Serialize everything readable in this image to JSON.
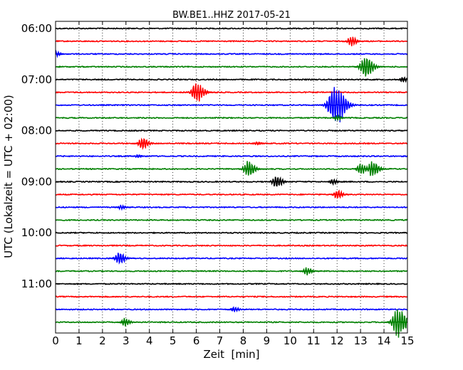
{
  "chart_data": {
    "type": "line",
    "title": "BW.BE1..HHZ 2017-05-21",
    "xlabel": "Zeit  [min]",
    "ylabel": "UTC (Lokalzeit = UTC + 02:00)",
    "xlim": [
      0,
      15
    ],
    "x_ticks": [
      0,
      1,
      2,
      3,
      4,
      5,
      6,
      7,
      8,
      9,
      10,
      11,
      12,
      13,
      14,
      15
    ],
    "y_tick_labels": [
      "06:00",
      "07:00",
      "08:00",
      "09:00",
      "10:00",
      "11:00"
    ],
    "grid": "vertical dotted",
    "trace_colors": [
      "#000000",
      "#ff0000",
      "#0000ff",
      "#008000"
    ],
    "trace_start_times": [
      "06:00",
      "06:15",
      "06:30",
      "06:45",
      "07:00",
      "07:15",
      "07:30",
      "07:45",
      "08:00",
      "08:15",
      "08:30",
      "08:45",
      "09:00",
      "09:15",
      "09:30",
      "09:45",
      "10:00",
      "10:15",
      "10:30",
      "10:45",
      "11:00",
      "11:15",
      "11:30",
      "11:45"
    ],
    "events": [
      {
        "trace": 1,
        "t": 12.6,
        "amp": 0.9
      },
      {
        "trace": 2,
        "t": 0.05,
        "amp": 0.4
      },
      {
        "trace": 3,
        "t": 13.2,
        "amp": 1.9
      },
      {
        "trace": 4,
        "t": 14.8,
        "amp": 0.5
      },
      {
        "trace": 5,
        "t": 6.0,
        "amp": 1.8
      },
      {
        "trace": 6,
        "t": 11.9,
        "amp": 3.4
      },
      {
        "trace": 7,
        "t": 12.0,
        "amp": 0.4
      },
      {
        "trace": 9,
        "t": 3.7,
        "amp": 1.1
      },
      {
        "trace": 9,
        "t": 8.6,
        "amp": 0.3
      },
      {
        "trace": 10,
        "t": 3.5,
        "amp": 0.3
      },
      {
        "trace": 11,
        "t": 8.2,
        "amp": 1.4
      },
      {
        "trace": 11,
        "t": 13.0,
        "amp": 1.0
      },
      {
        "trace": 11,
        "t": 13.5,
        "amp": 1.4
      },
      {
        "trace": 12,
        "t": 9.4,
        "amp": 1.1
      },
      {
        "trace": 12,
        "t": 11.8,
        "amp": 0.5
      },
      {
        "trace": 13,
        "t": 12.0,
        "amp": 0.8
      },
      {
        "trace": 14,
        "t": 2.8,
        "amp": 0.4
      },
      {
        "trace": 18,
        "t": 2.7,
        "amp": 1.1
      },
      {
        "trace": 19,
        "t": 10.7,
        "amp": 0.7
      },
      {
        "trace": 22,
        "t": 7.6,
        "amp": 0.5
      },
      {
        "trace": 23,
        "t": 2.95,
        "amp": 0.7
      },
      {
        "trace": 23,
        "t": 14.6,
        "amp": 2.5
      }
    ]
  }
}
